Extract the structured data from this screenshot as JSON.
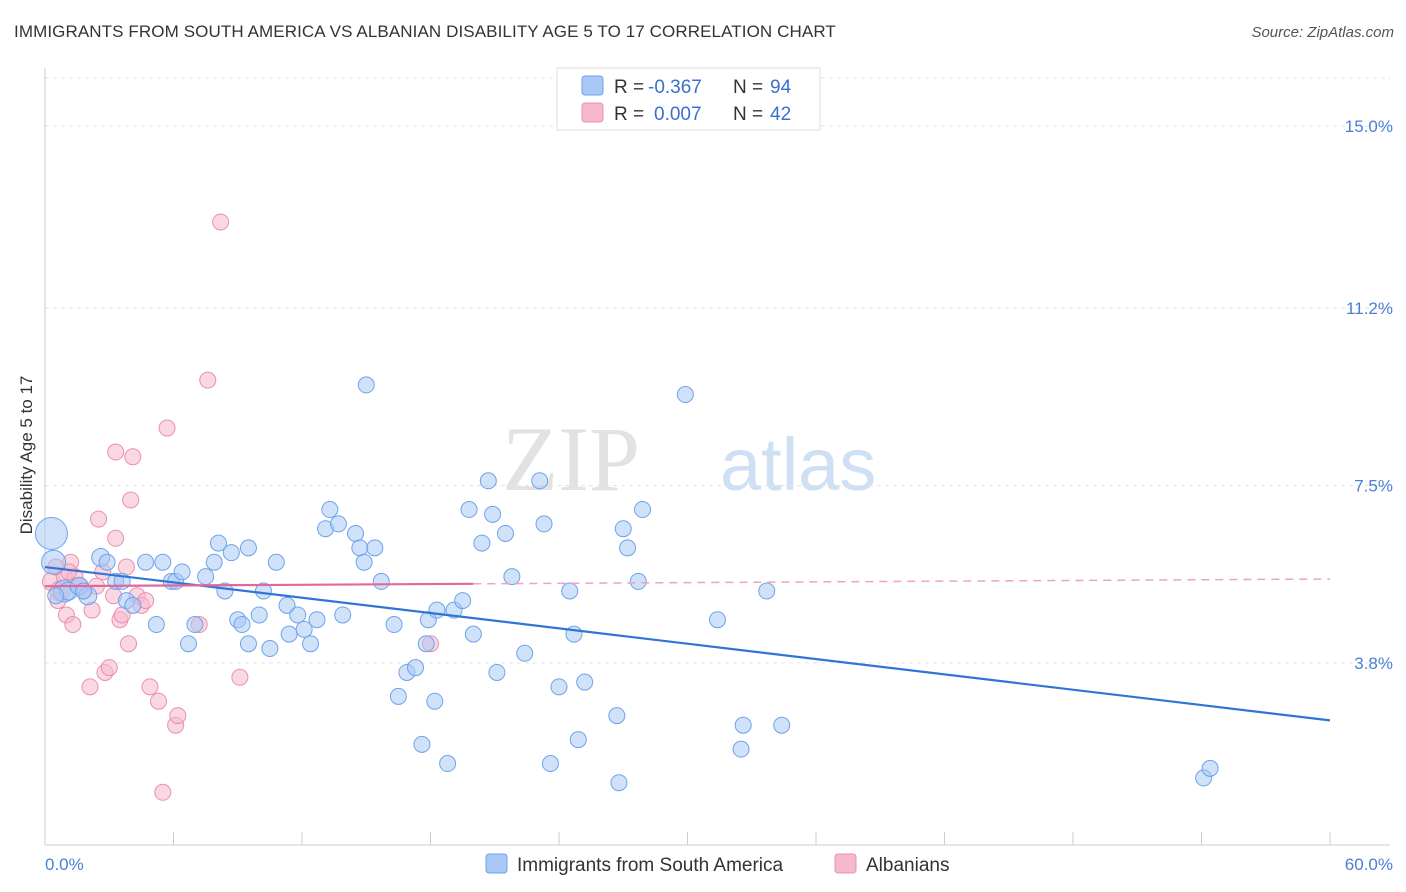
{
  "header": {
    "title": "IMMIGRANTS FROM SOUTH AMERICA VS ALBANIAN DISABILITY AGE 5 TO 17 CORRELATION CHART",
    "source": "Source: ZipAtlas.com"
  },
  "watermark": {
    "zip": "ZIP",
    "atlas": "atlas"
  },
  "legend": {
    "rows": [
      {
        "r_label": "R =",
        "r_value": "-0.367",
        "n_label": "N =",
        "n_value": "94",
        "color": "#a9c8f5"
      },
      {
        "r_label": "R =",
        "r_value": "0.007",
        "n_label": "N =",
        "n_value": "42",
        "color": "#f5b8cc"
      }
    ]
  },
  "bottom_legend": {
    "items": [
      {
        "label": "Immigrants from South America",
        "color": "#a9c8f5"
      },
      {
        "label": "Albanians",
        "color": "#f5b8cc"
      }
    ]
  },
  "chart_data": {
    "type": "scatter",
    "title": "IMMIGRANTS FROM SOUTH AMERICA VS ALBANIAN DISABILITY AGE 5 TO 17 CORRELATION CHART",
    "xlabel": "",
    "ylabel": "Disability Age 5 to 17",
    "xlim": [
      0,
      60
    ],
    "ylim": [
      0,
      15.9
    ],
    "x_tick_labels": [
      "0.0%",
      "60.0%"
    ],
    "y_ticks": [
      3.8,
      7.5,
      11.2,
      15.0
    ],
    "y_tick_labels": [
      "3.8%",
      "7.5%",
      "11.2%",
      "15.0%"
    ],
    "grid": "horizontal dashed",
    "legend_position": "top-center",
    "series": [
      {
        "name": "Immigrants from South America",
        "color": "#6ea3ea",
        "fill": "#a9c8f5",
        "trend": {
          "x": [
            0,
            60
          ],
          "y": [
            5.8,
            2.6
          ],
          "style": "solid"
        },
        "points": [
          [
            0.3,
            6.5,
            16
          ],
          [
            0.4,
            5.9,
            12
          ],
          [
            0.9,
            5.3,
            11
          ],
          [
            1.1,
            5.3,
            9
          ],
          [
            1.6,
            5.4,
            9
          ],
          [
            2.0,
            5.2,
            9
          ],
          [
            2.6,
            6.0,
            9
          ],
          [
            2.9,
            5.9,
            8
          ],
          [
            3.3,
            5.5,
            8
          ],
          [
            3.6,
            5.5,
            8
          ],
          [
            3.8,
            5.1,
            8
          ],
          [
            4.1,
            5.0,
            8
          ],
          [
            4.7,
            5.9,
            8
          ],
          [
            5.2,
            4.6,
            8
          ],
          [
            5.5,
            5.9,
            8
          ],
          [
            5.9,
            5.5,
            8
          ],
          [
            6.1,
            5.5,
            8
          ],
          [
            6.4,
            5.7,
            8
          ],
          [
            6.7,
            4.2,
            8
          ],
          [
            7.0,
            4.6,
            8
          ],
          [
            7.5,
            5.6,
            8
          ],
          [
            7.9,
            5.9,
            8
          ],
          [
            8.1,
            6.3,
            8
          ],
          [
            8.4,
            5.3,
            8
          ],
          [
            8.7,
            6.1,
            8
          ],
          [
            9.0,
            4.7,
            8
          ],
          [
            9.2,
            4.6,
            8
          ],
          [
            9.5,
            6.2,
            8
          ],
          [
            9.5,
            4.2,
            8
          ],
          [
            10.0,
            4.8,
            8
          ],
          [
            10.2,
            5.3,
            8
          ],
          [
            10.5,
            4.1,
            8
          ],
          [
            10.8,
            5.9,
            8
          ],
          [
            11.3,
            5.0,
            8
          ],
          [
            11.4,
            4.4,
            8
          ],
          [
            11.8,
            4.8,
            8
          ],
          [
            12.1,
            4.5,
            8
          ],
          [
            12.4,
            4.2,
            8
          ],
          [
            12.7,
            4.7,
            8
          ],
          [
            13.1,
            6.6,
            8
          ],
          [
            13.3,
            7.0,
            8
          ],
          [
            13.7,
            6.7,
            8
          ],
          [
            13.9,
            4.8,
            8
          ],
          [
            14.5,
            6.5,
            8
          ],
          [
            14.7,
            6.2,
            8
          ],
          [
            14.9,
            5.9,
            8
          ],
          [
            15.0,
            9.6,
            8
          ],
          [
            15.4,
            6.2,
            8
          ],
          [
            15.7,
            5.5,
            8
          ],
          [
            16.3,
            4.6,
            8
          ],
          [
            16.5,
            3.1,
            8
          ],
          [
            16.9,
            3.6,
            8
          ],
          [
            17.3,
            3.7,
            8
          ],
          [
            17.6,
            2.1,
            8
          ],
          [
            17.8,
            4.2,
            8
          ],
          [
            17.9,
            4.7,
            8
          ],
          [
            18.2,
            3.0,
            8
          ],
          [
            18.3,
            4.9,
            8
          ],
          [
            18.8,
            1.7,
            8
          ],
          [
            19.1,
            4.9,
            8
          ],
          [
            19.5,
            5.1,
            8
          ],
          [
            19.8,
            7.0,
            8
          ],
          [
            20.0,
            4.4,
            8
          ],
          [
            20.4,
            6.3,
            8
          ],
          [
            20.7,
            7.6,
            8
          ],
          [
            20.9,
            6.9,
            8
          ],
          [
            21.1,
            3.6,
            8
          ],
          [
            21.5,
            6.5,
            8
          ],
          [
            21.8,
            5.6,
            8
          ],
          [
            22.4,
            4.0,
            8
          ],
          [
            23.1,
            7.6,
            8
          ],
          [
            23.3,
            6.7,
            8
          ],
          [
            23.6,
            1.7,
            8
          ],
          [
            24.0,
            3.3,
            8
          ],
          [
            24.5,
            5.3,
            8
          ],
          [
            24.7,
            4.4,
            8
          ],
          [
            24.9,
            2.2,
            8
          ],
          [
            25.2,
            3.4,
            8
          ],
          [
            26.7,
            2.7,
            8
          ],
          [
            26.8,
            1.3,
            8
          ],
          [
            27.0,
            6.6,
            8
          ],
          [
            27.2,
            6.2,
            8
          ],
          [
            27.7,
            5.5,
            8
          ],
          [
            27.9,
            7.0,
            8
          ],
          [
            29.9,
            9.4,
            8
          ],
          [
            31.4,
            4.7,
            8
          ],
          [
            32.5,
            2.0,
            8
          ],
          [
            32.6,
            2.5,
            8
          ],
          [
            33.7,
            5.3,
            8
          ],
          [
            34.4,
            2.5,
            8
          ],
          [
            54.1,
            1.4,
            8
          ],
          [
            54.4,
            1.6,
            8
          ],
          [
            0.5,
            5.2,
            8
          ],
          [
            1.8,
            5.3,
            8
          ]
        ]
      },
      {
        "name": "Albanians",
        "color": "#ec8fac",
        "fill": "#f5b8cc",
        "trend": {
          "x": [
            0,
            20
          ],
          "y": [
            5.4,
            5.45
          ],
          "style": "solid",
          "extended": {
            "x": [
              20,
              60
            ],
            "y": [
              5.45,
              5.55
            ],
            "style": "dashed"
          }
        },
        "points": [
          [
            0.3,
            5.5,
            9
          ],
          [
            0.5,
            5.8,
            8
          ],
          [
            0.7,
            5.3,
            10
          ],
          [
            0.9,
            5.6,
            8
          ],
          [
            1.0,
            4.8,
            8
          ],
          [
            1.2,
            5.9,
            8
          ],
          [
            1.3,
            4.6,
            8
          ],
          [
            1.4,
            5.6,
            8
          ],
          [
            1.6,
            5.4,
            8
          ],
          [
            1.8,
            5.3,
            8
          ],
          [
            2.1,
            3.3,
            8
          ],
          [
            2.2,
            4.9,
            8
          ],
          [
            2.5,
            6.8,
            8
          ],
          [
            2.7,
            5.7,
            8
          ],
          [
            2.8,
            3.6,
            8
          ],
          [
            3.0,
            3.7,
            8
          ],
          [
            3.2,
            5.2,
            8
          ],
          [
            3.3,
            8.2,
            8
          ],
          [
            3.3,
            6.4,
            8
          ],
          [
            3.5,
            4.7,
            8
          ],
          [
            3.6,
            4.8,
            8
          ],
          [
            3.8,
            5.8,
            8
          ],
          [
            3.9,
            4.2,
            8
          ],
          [
            4.0,
            7.2,
            8
          ],
          [
            4.1,
            8.1,
            8
          ],
          [
            4.3,
            5.2,
            8
          ],
          [
            4.5,
            5.0,
            8
          ],
          [
            4.7,
            5.1,
            8
          ],
          [
            4.9,
            3.3,
            8
          ],
          [
            5.3,
            3.0,
            8
          ],
          [
            5.5,
            1.1,
            8
          ],
          [
            5.7,
            8.7,
            8
          ],
          [
            6.1,
            2.5,
            8
          ],
          [
            6.2,
            2.7,
            8
          ],
          [
            7.2,
            4.6,
            8
          ],
          [
            7.6,
            9.7,
            8
          ],
          [
            8.2,
            13.0,
            8
          ],
          [
            9.1,
            3.5,
            8
          ],
          [
            18.0,
            4.2,
            8
          ],
          [
            0.6,
            5.1,
            8
          ],
          [
            1.1,
            5.7,
            8
          ],
          [
            2.4,
            5.4,
            8
          ]
        ]
      }
    ]
  }
}
